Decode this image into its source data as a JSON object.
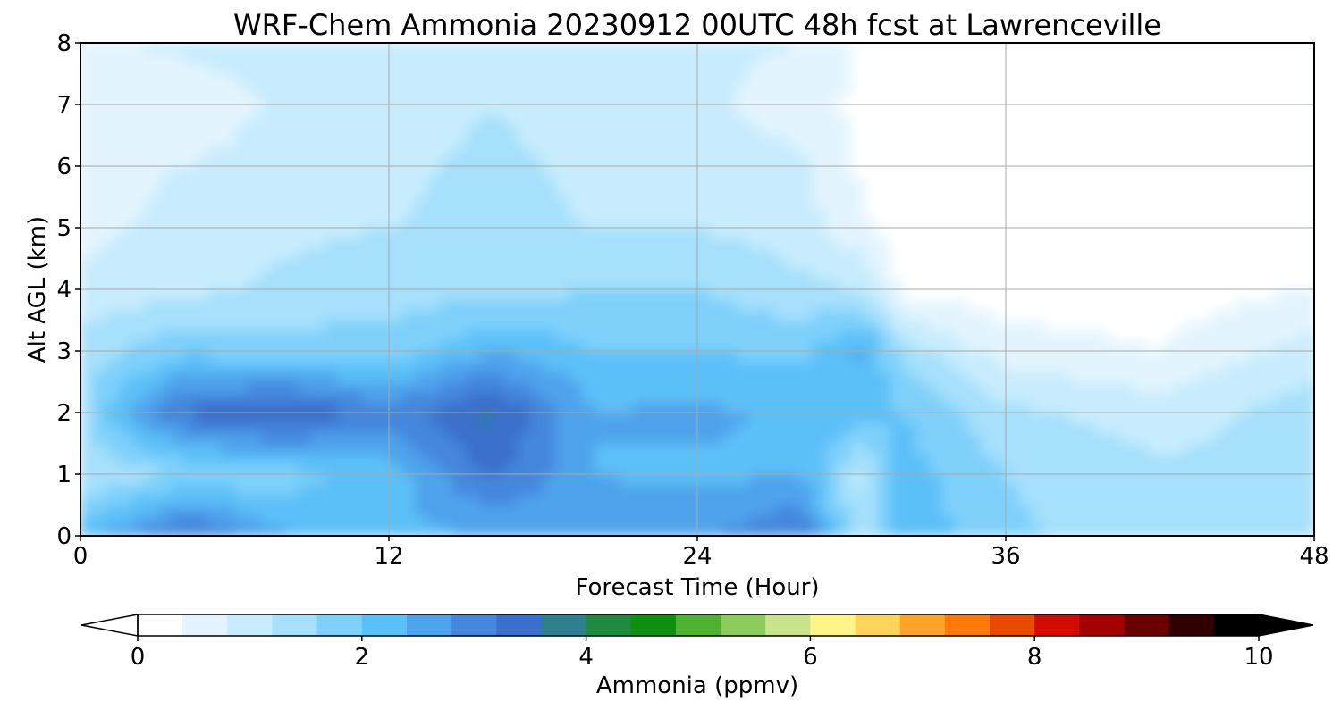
{
  "chart_data": {
    "type": "heatmap",
    "title": "WRF-Chem Ammonia  20230912 00UTC 48h fcst at Lawrenceville",
    "xlabel": "Forecast Time (Hour)",
    "ylabel": "Alt AGL (km)",
    "xlim": [
      0,
      48
    ],
    "ylim": [
      0,
      8
    ],
    "x_ticks": [
      "0",
      "12",
      "24",
      "36",
      "48"
    ],
    "y_ticks": [
      "0",
      "1",
      "2",
      "3",
      "4",
      "5",
      "6",
      "7",
      "8"
    ],
    "grid": true,
    "colorbar": {
      "label": "Ammonia  (ppmv)",
      "min": 0,
      "max": 10,
      "ticks": [
        "0",
        "2",
        "4",
        "6",
        "8",
        "10"
      ],
      "extend": "both",
      "colors": [
        "#ffffff",
        "#e3f4fe",
        "#c8ecfd",
        "#a6e0fc",
        "#7ed0fb",
        "#5bc0f8",
        "#4fa3ec",
        "#4487dc",
        "#3b6fcc",
        "#2f7f8f",
        "#1f8a40",
        "#0e8f12",
        "#4eb131",
        "#8ccb5c",
        "#c8e38c",
        "#fff48a",
        "#ffd45a",
        "#ffa42a",
        "#ff7a0a",
        "#e84a00",
        "#d30a00",
        "#a30000",
        "#6a0000",
        "#300000",
        "#000000"
      ]
    },
    "value_field": [
      {
        "z_km": 8.0,
        "values": [
          0.7,
          0.9,
          1.0,
          1.0,
          1.1,
          1.0,
          0.9,
          0.8,
          0.3,
          0.1,
          0.1,
          0.1,
          0.1
        ]
      },
      {
        "z_km": 7.0,
        "values": [
          0.6,
          0.5,
          0.9,
          1.0,
          1.2,
          1.0,
          0.9,
          0.6,
          0.3,
          0.1,
          0.1,
          0.1,
          0.1
        ]
      },
      {
        "z_km": 6.0,
        "values": [
          0.7,
          0.8,
          1.0,
          1.1,
          1.3,
          1.1,
          1.0,
          0.9,
          0.3,
          0.1,
          0.1,
          0.1,
          0.1
        ]
      },
      {
        "z_km": 5.0,
        "values": [
          0.7,
          0.9,
          1.1,
          1.2,
          1.3,
          1.2,
          1.2,
          1.0,
          0.5,
          0.1,
          0.1,
          0.1,
          0.1
        ]
      },
      {
        "z_km": 4.0,
        "values": [
          0.9,
          1.1,
          1.3,
          1.5,
          1.4,
          1.6,
          1.6,
          1.3,
          1.2,
          0.3,
          0.2,
          0.2,
          0.4
        ]
      },
      {
        "z_km": 3.0,
        "values": [
          1.4,
          1.9,
          1.8,
          1.7,
          2.4,
          2.0,
          2.0,
          1.9,
          2.5,
          1.4,
          0.6,
          0.4,
          1.0
        ]
      },
      {
        "z_km": 2.0,
        "values": [
          1.5,
          3.3,
          3.6,
          3.0,
          3.7,
          2.4,
          2.5,
          2.3,
          2.2,
          2.0,
          1.3,
          1.0,
          1.4
        ]
      },
      {
        "z_km": 1.0,
        "values": [
          1.2,
          1.6,
          1.8,
          2.2,
          3.3,
          2.4,
          2.3,
          2.4,
          1.0,
          2.2,
          1.6,
          1.3,
          1.3
        ]
      },
      {
        "z_km": 0.0,
        "values": [
          2.2,
          3.4,
          2.4,
          2.3,
          2.4,
          2.6,
          2.7,
          3.2,
          1.2,
          2.3,
          1.7,
          1.3,
          1.3
        ]
      }
    ],
    "value_field_x_hours": [
      0,
      4,
      8,
      12,
      16,
      20,
      24,
      28,
      30.5,
      32,
      36,
      42,
      48
    ]
  }
}
